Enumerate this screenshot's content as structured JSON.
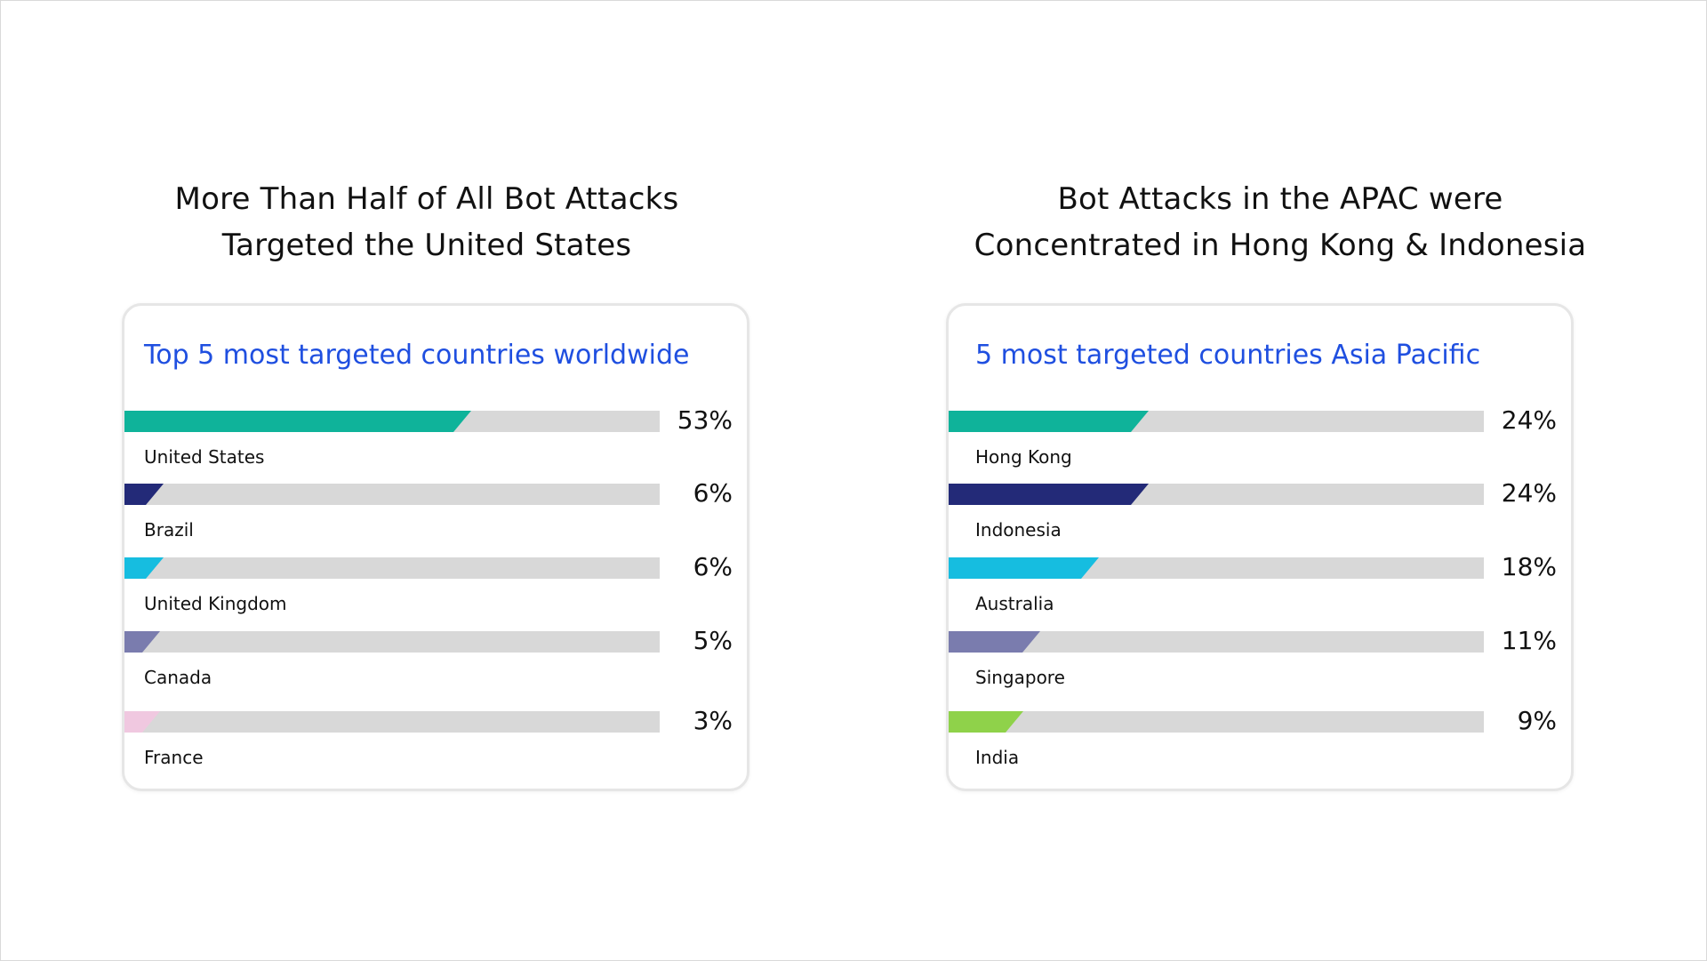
{
  "charts": [
    {
      "heading_lines": [
        "More Than Half of All Bot Attacks",
        "Targeted the United States"
      ],
      "card_title": "Top 5 most targeted countries worldwide"
    },
    {
      "heading_lines": [
        "Bot Attacks in the APAC were",
        "Concentrated in Hong Kong & Indonesia"
      ],
      "card_title": "5 most targeted countries Asia Pacific"
    }
  ],
  "chart_data": [
    {
      "type": "bar",
      "orientation": "horizontal",
      "title": "Top 5 most targeted countries worldwide",
      "categories": [
        "United States",
        "Brazil",
        "United Kingdom",
        "Canada",
        "France"
      ],
      "values": [
        53,
        6,
        6,
        5,
        3
      ],
      "value_labels": [
        "53%",
        "6%",
        "6%",
        "5%",
        "3%"
      ],
      "colors": [
        "#0fb39a",
        "#232a78",
        "#16bde0",
        "#7a7cae",
        "#f0c8e0"
      ],
      "grid": false
    },
    {
      "type": "bar",
      "orientation": "horizontal",
      "title": "5 most targeted countries Asia Pacific",
      "categories": [
        "Hong Kong",
        "Indonesia",
        "Australia",
        "Singapore",
        "India"
      ],
      "values": [
        24,
        24,
        18,
        11,
        9
      ],
      "value_labels": [
        "24%",
        "24%",
        "18%",
        "11%",
        "9%"
      ],
      "colors": [
        "#0fb39a",
        "#232a78",
        "#16bde0",
        "#7a7cae",
        "#8fd24a"
      ],
      "grid": false
    }
  ]
}
